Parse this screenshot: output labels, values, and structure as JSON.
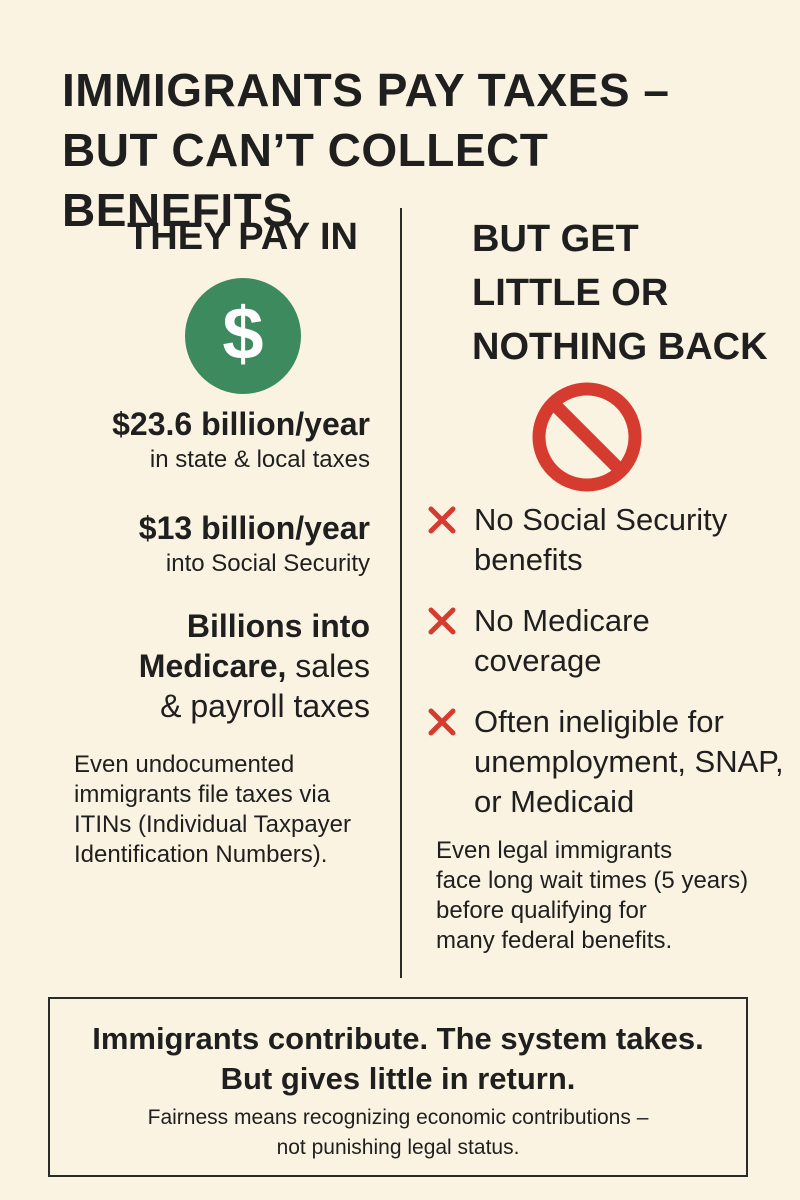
{
  "title": {
    "line1": "IMMIGRANTS PAY TAXES –",
    "line2": "BUT CAN’T COLLECT BENEFITS"
  },
  "left": {
    "heading": "THEY PAY IN",
    "icon": "dollar-icon",
    "icon_glyph": "$",
    "icon_color": "#3d8a5e",
    "stats": [
      {
        "big": "$23.6 billion/year",
        "small": "in state & local taxes"
      },
      {
        "big": "$13 billion/year",
        "small": "into Social Security"
      }
    ],
    "stat3": {
      "line1": "Billions into",
      "line2_bold": "Medicare,",
      "line2_rest": " sales",
      "line3": "& payroll taxes"
    },
    "note_lines": [
      "Even undocumented",
      "immigrants file taxes via",
      "ITINs (Individual Taxpayer",
      "Identification Numbers)."
    ]
  },
  "right": {
    "heading_lines": [
      "BUT GET",
      "LITTLE OR",
      "NOTHING BACK"
    ],
    "icon": "prohibited-icon",
    "icon_color": "#d63b30",
    "benefits": [
      {
        "lines": [
          "No Social Security",
          "benefits"
        ]
      },
      {
        "lines": [
          "No Medicare",
          "coverage"
        ]
      },
      {
        "lines": [
          "Often ineligible for",
          "unemployment, SNAP,",
          "or Medicaid"
        ]
      }
    ],
    "note_lines": [
      "Even legal immigrants",
      "face long wait times (5 years)",
      "before qualifying for",
      "many federal benefits."
    ]
  },
  "bottom": {
    "main_lines": [
      "Immigrants contribute. The system takes.",
      "But gives little in return."
    ],
    "sub_lines": [
      "Fairness means recognizing economic contributions –",
      "not punishing legal status."
    ]
  },
  "colors": {
    "background": "#fbf3e2",
    "text": "#1f1f1f",
    "accent_green": "#3d8a5e",
    "accent_red": "#d63b30"
  }
}
